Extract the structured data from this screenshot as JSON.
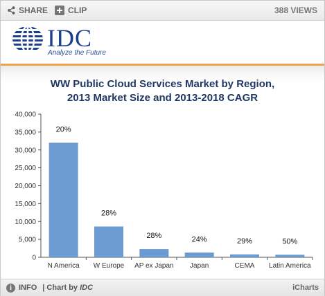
{
  "toolbar": {
    "share_label": "SHARE",
    "clip_label": "CLIP",
    "views_label": "388 VIEWS"
  },
  "logo": {
    "text": "IDC",
    "tagline": "Analyze the Future",
    "color": "#1b3f8c"
  },
  "footer": {
    "info_label": "INFO",
    "chart_by_prefix": "| Chart by ",
    "chart_by_name": "IDC",
    "brand": "iCharts"
  },
  "chart_data": {
    "type": "bar",
    "title_line1": "WW Public Cloud Services Market by Region,",
    "title_line2": "2013 Market Size and 2013-2018 CAGR",
    "categories": [
      "N America",
      "W Europe",
      "AP ex Japan",
      "Japan",
      "CEMA",
      "Latin America"
    ],
    "values": [
      32000,
      8600,
      2300,
      1300,
      800,
      700
    ],
    "data_labels": [
      "20%",
      "28%",
      "28%",
      "24%",
      "29%",
      "50%"
    ],
    "ylim": [
      0,
      40000
    ],
    "yticks": [
      0,
      5000,
      10000,
      15000,
      20000,
      25000,
      30000,
      35000,
      40000
    ],
    "ytick_labels": [
      "0",
      "5,000",
      "10,000",
      "15,000",
      "20,000",
      "25,000",
      "30,000",
      "35,000",
      "40,000"
    ],
    "bar_color": "#6b9bd1",
    "grid": false,
    "legend": "none"
  }
}
